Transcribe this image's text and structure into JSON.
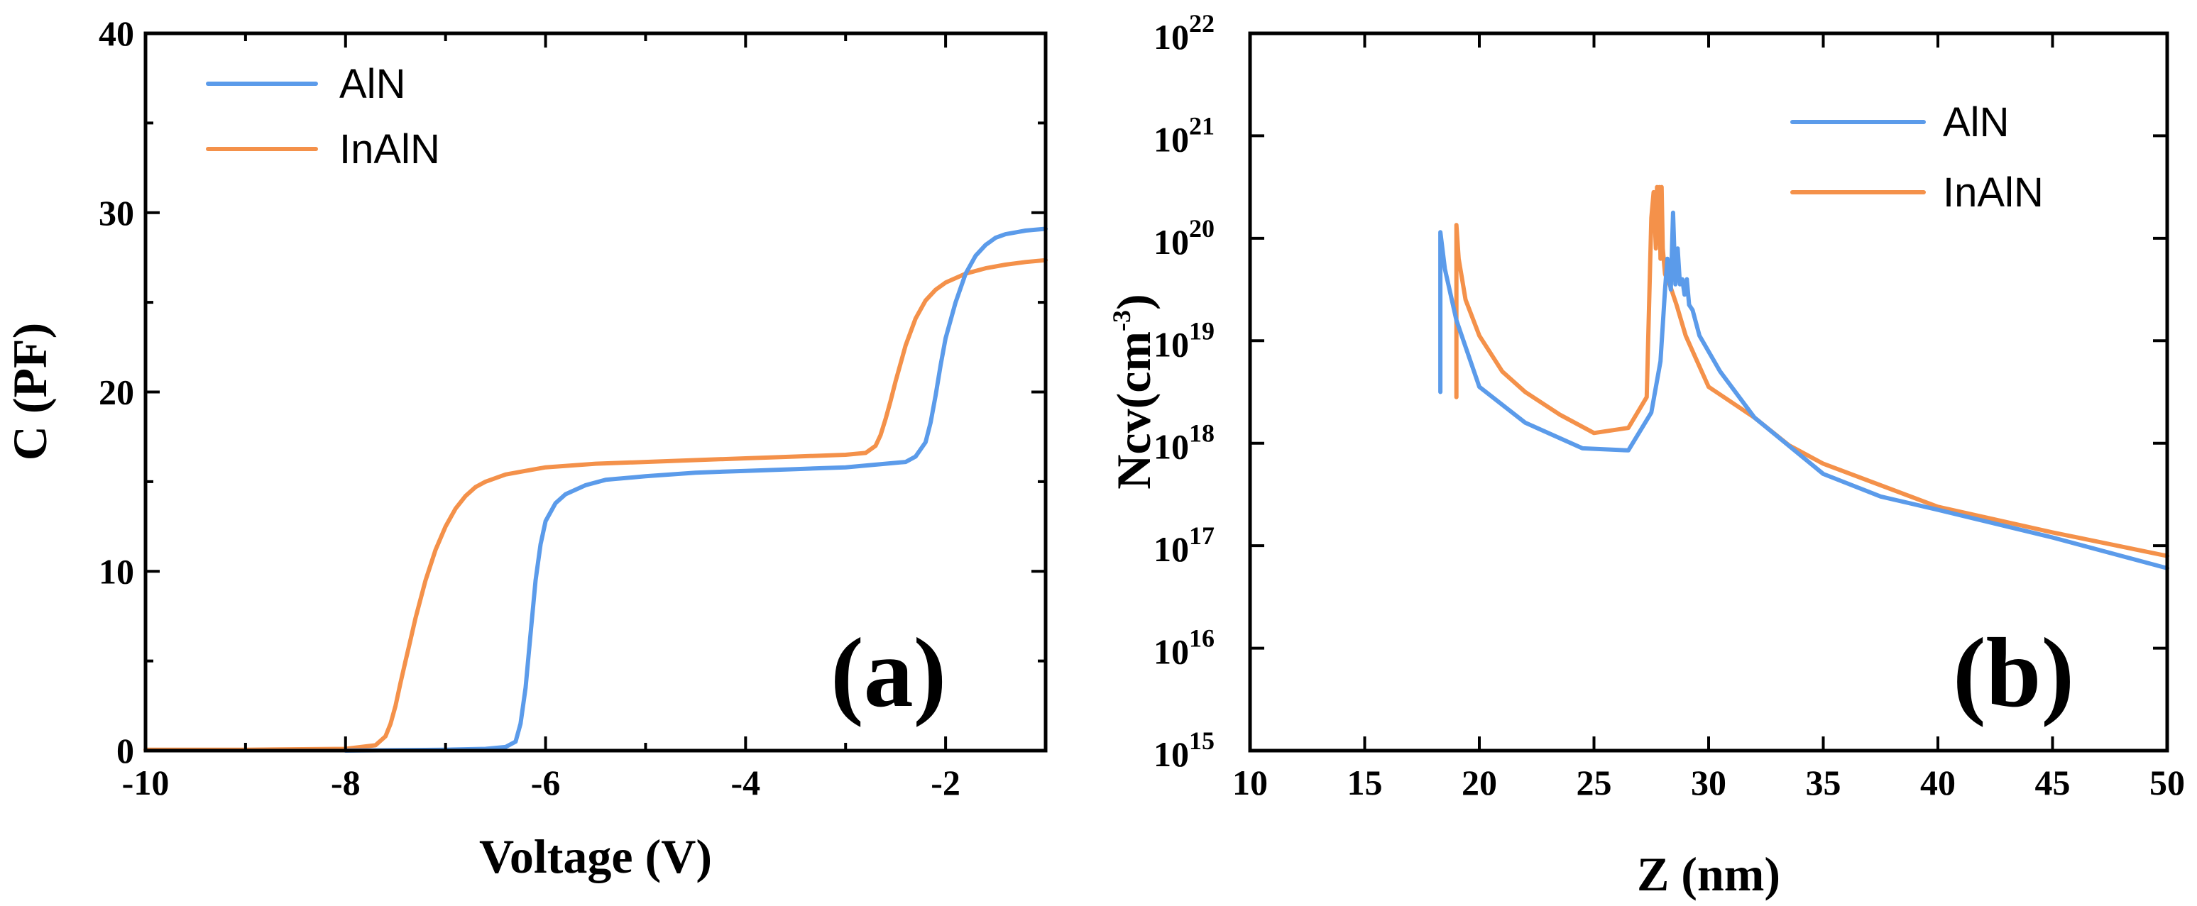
{
  "chart_data": [
    {
      "id": "a",
      "type": "line",
      "panel_label": "(a)",
      "xlabel": "Voltage (V)",
      "ylabel": "C (PF)",
      "xlim": [
        -10,
        -1
      ],
      "ylim": [
        0,
        40
      ],
      "xticks": [
        -10,
        -8,
        -6,
        -4,
        -2
      ],
      "xtick_labels": [
        "-10",
        "-8",
        "-6",
        "-4",
        "-2"
      ],
      "yticks": [
        0,
        10,
        20,
        30,
        40
      ],
      "ytick_labels": [
        "0",
        "10",
        "20",
        "30",
        "40"
      ],
      "legend": {
        "position": "top-left"
      },
      "series": [
        {
          "name": "AlN",
          "color": "#5b9bea",
          "x": [
            -8.0,
            -7.0,
            -6.6,
            -6.4,
            -6.3,
            -6.25,
            -6.2,
            -6.15,
            -6.1,
            -6.05,
            -6.0,
            -5.9,
            -5.8,
            -5.6,
            -5.4,
            -5.0,
            -4.5,
            -4.0,
            -3.5,
            -3.0,
            -2.6,
            -2.4,
            -2.3,
            -2.2,
            -2.15,
            -2.1,
            -2.05,
            -2.0,
            -1.9,
            -1.8,
            -1.7,
            -1.6,
            -1.5,
            -1.4,
            -1.3,
            -1.2,
            -1.1,
            -1.0
          ],
          "values": [
            0.0,
            0.05,
            0.1,
            0.2,
            0.5,
            1.5,
            3.5,
            6.5,
            9.5,
            11.5,
            12.8,
            13.8,
            14.3,
            14.8,
            15.1,
            15.3,
            15.5,
            15.6,
            15.7,
            15.8,
            16.0,
            16.1,
            16.4,
            17.2,
            18.3,
            19.8,
            21.5,
            23.0,
            25.0,
            26.6,
            27.6,
            28.2,
            28.6,
            28.8,
            28.9,
            29.0,
            29.05,
            29.1
          ]
        },
        {
          "name": "InAlN",
          "color": "#f4914a",
          "x": [
            -10.0,
            -9.0,
            -8.0,
            -7.7,
            -7.6,
            -7.55,
            -7.5,
            -7.45,
            -7.4,
            -7.35,
            -7.3,
            -7.2,
            -7.1,
            -7.0,
            -6.9,
            -6.8,
            -6.7,
            -6.6,
            -6.4,
            -6.2,
            -6.0,
            -5.5,
            -5.0,
            -4.5,
            -4.0,
            -3.5,
            -3.0,
            -2.8,
            -2.7,
            -2.65,
            -2.6,
            -2.55,
            -2.5,
            -2.4,
            -2.3,
            -2.2,
            -2.1,
            -2.0,
            -1.8,
            -1.6,
            -1.4,
            -1.2,
            -1.0
          ],
          "values": [
            0.05,
            0.05,
            0.1,
            0.3,
            0.8,
            1.5,
            2.5,
            3.8,
            5.0,
            6.2,
            7.4,
            9.5,
            11.2,
            12.5,
            13.5,
            14.2,
            14.7,
            15.0,
            15.4,
            15.6,
            15.8,
            16.0,
            16.1,
            16.2,
            16.3,
            16.4,
            16.5,
            16.6,
            17.0,
            17.6,
            18.5,
            19.5,
            20.6,
            22.6,
            24.1,
            25.1,
            25.7,
            26.1,
            26.6,
            26.9,
            27.1,
            27.25,
            27.35
          ]
        }
      ]
    },
    {
      "id": "b",
      "type": "line",
      "yscale": "log",
      "panel_label": "(b)",
      "xlabel": "Z (nm)",
      "ylabel": "Ncv(cm",
      "ylabel_sup": "-3",
      "ylabel_suffix": ")",
      "xlim": [
        10,
        50
      ],
      "ylim_log10": [
        15,
        22
      ],
      "xticks": [
        10,
        15,
        20,
        25,
        30,
        35,
        40,
        45,
        50
      ],
      "xtick_labels": [
        "10",
        "15",
        "20",
        "25",
        "30",
        "35",
        "40",
        "45",
        "50"
      ],
      "yticks_log10": [
        15,
        16,
        17,
        18,
        19,
        20,
        21,
        22
      ],
      "ytick_base": "10",
      "ytick_exponents": [
        "15",
        "16",
        "17",
        "18",
        "19",
        "20",
        "21",
        "22"
      ],
      "legend": {
        "position": "upper-right"
      },
      "series": [
        {
          "name": "AlN",
          "color": "#5b9bea",
          "x": [
            18.3,
            18.3,
            18.5,
            19.0,
            20.0,
            22.0,
            24.5,
            26.5,
            27.5,
            27.9,
            28.1,
            28.2,
            28.35,
            28.45,
            28.55,
            28.65,
            28.75,
            28.85,
            28.95,
            29.05,
            29.15,
            29.3,
            29.6,
            30.5,
            32.0,
            35.0,
            37.5,
            40.0,
            45.0,
            50.0
          ],
          "log10_values": [
            18.5,
            20.06,
            19.7,
            19.2,
            18.55,
            18.2,
            17.95,
            17.93,
            18.3,
            18.8,
            19.5,
            19.8,
            19.5,
            20.25,
            19.55,
            19.9,
            19.55,
            19.6,
            19.45,
            19.6,
            19.35,
            19.3,
            19.05,
            18.7,
            18.25,
            17.7,
            17.48,
            17.35,
            17.08,
            16.78
          ],
          "note": "log10 of Ncv in cm^-3"
        },
        {
          "name": "InAlN",
          "color": "#f4914a",
          "x": [
            19.0,
            19.0,
            19.1,
            19.4,
            20.0,
            21.0,
            22.0,
            23.5,
            25.0,
            26.5,
            27.3,
            27.5,
            27.6,
            27.7,
            27.75,
            27.8,
            27.85,
            27.9,
            27.95,
            28.0,
            28.1,
            28.3,
            28.6,
            29.0,
            29.5,
            30.0,
            32.0,
            33.5,
            35.0,
            40.0,
            45.0,
            50.0
          ],
          "log10_values": [
            18.45,
            20.13,
            19.8,
            19.4,
            19.05,
            18.7,
            18.5,
            18.28,
            18.1,
            18.15,
            18.45,
            20.2,
            20.45,
            19.9,
            20.5,
            19.95,
            20.5,
            19.8,
            20.5,
            19.9,
            19.65,
            19.55,
            19.35,
            19.05,
            18.8,
            18.55,
            18.25,
            17.98,
            17.8,
            17.38,
            17.13,
            16.9
          ],
          "note": "log10 of Ncv in cm^-3"
        }
      ]
    }
  ]
}
